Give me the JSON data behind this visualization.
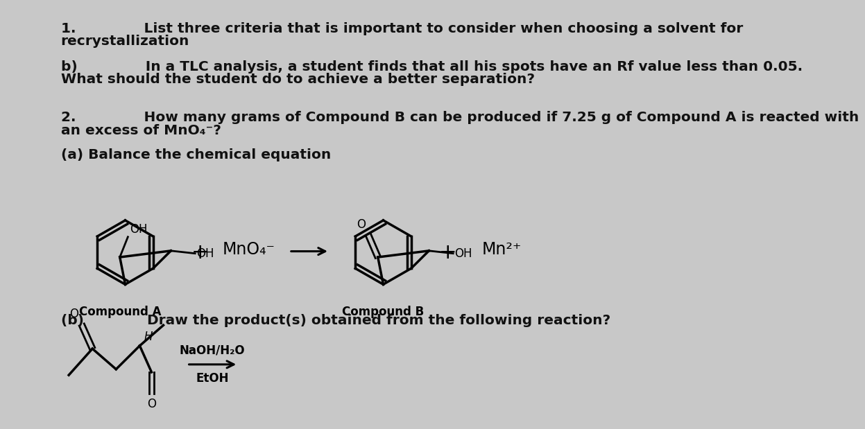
{
  "bg_color": "#c8c8c8",
  "text_color": "#111111",
  "font_family": "DejaVu Sans",
  "q1_line1": "1.              List three criteria that is important to consider when choosing a solvent for",
  "q1_line2": "recrystallization",
  "qb_line1": "b)              In a TLC analysis, a student finds that all his spots have an Rf value less than 0.05.",
  "qb_line2": "What should the student do to achieve a better separation?",
  "q2_line1": "2.              How many grams of Compound B can be produced if 7.25 g of Compound A is reacted with",
  "q2_line2": "an excess of MnO₄⁻?",
  "qa_balance": "(a) Balance the chemical equation",
  "compound_a_label": "Compound A",
  "compound_b_label": "Compound B",
  "plus_sign": "+",
  "mno4_text": "MnO₄⁻",
  "mn2plus_text": "Mn²⁺",
  "qb2_line1": "(b)             Draw the product(s) obtained from the following reaction?",
  "naoh_text": "NaOH/H₂O",
  "etoh_text": "EtOH"
}
